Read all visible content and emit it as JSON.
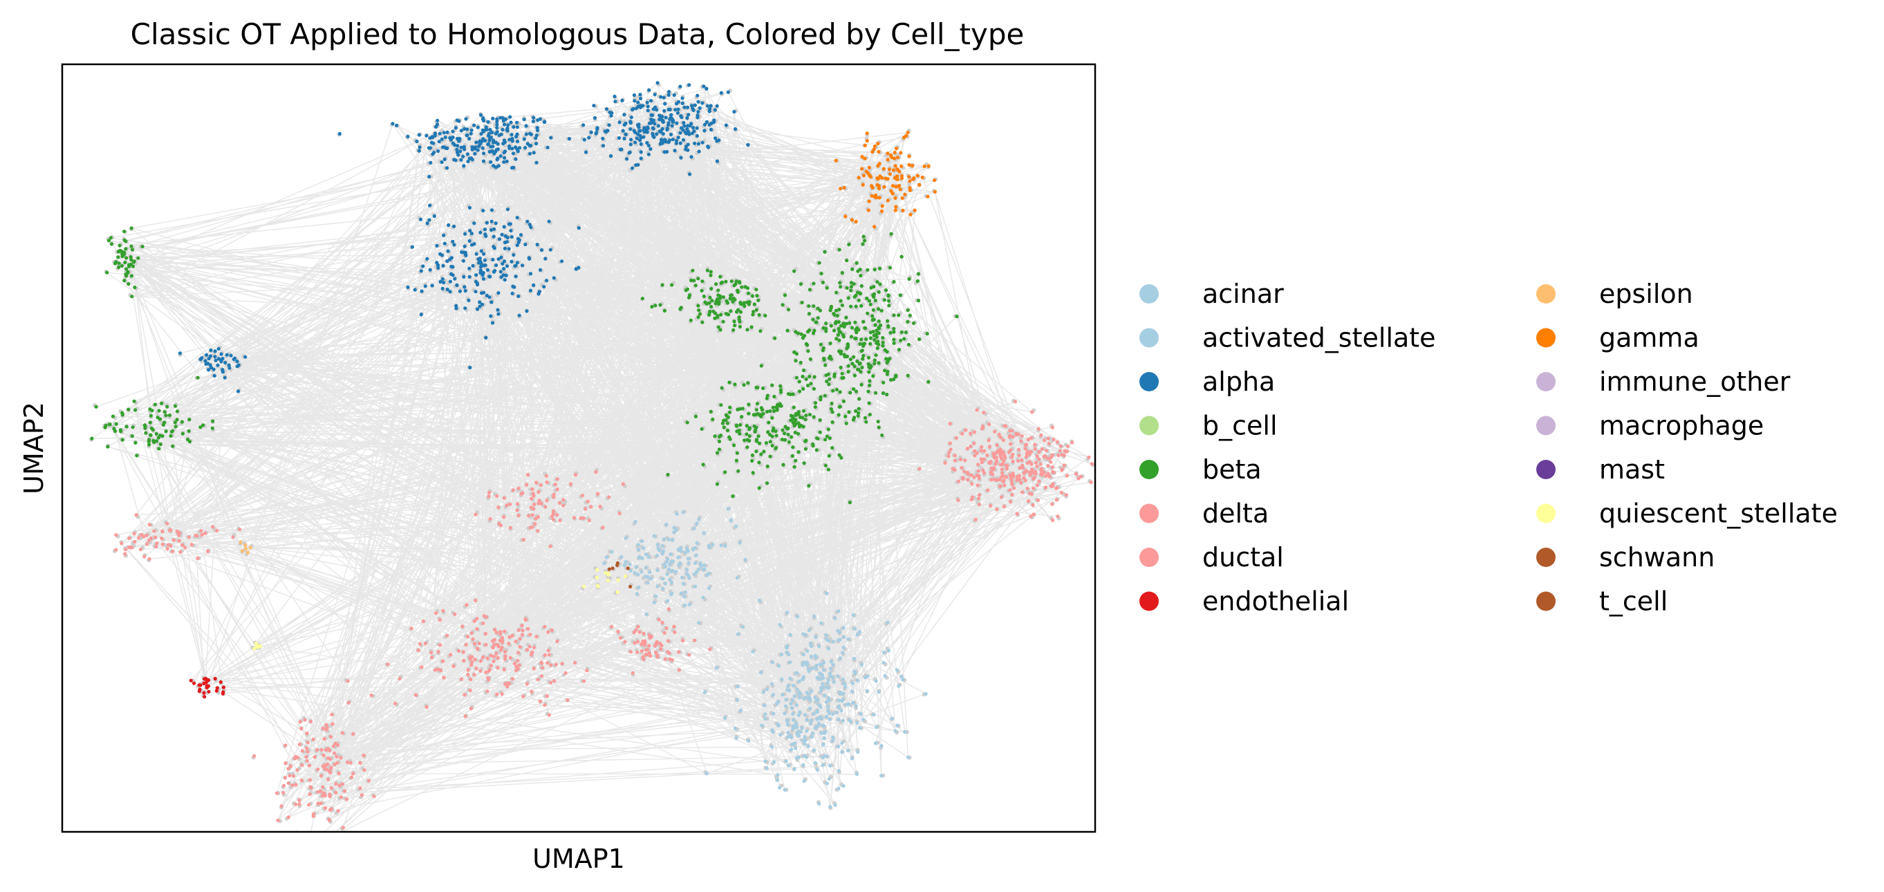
{
  "chart_data": {
    "type": "scatter",
    "title": "Classic OT Applied to Homologous Data, Colored by Cell_type",
    "xlabel": "UMAP1",
    "ylabel": "UMAP2",
    "xlim": [
      0,
      100
    ],
    "ylim": [
      0,
      100
    ],
    "ticks": "none",
    "grid": false,
    "legend_position": "right",
    "connection_color": "#d3d3d3",
    "legend": [
      {
        "label": "acinar",
        "color": "#a6cee3"
      },
      {
        "label": "activated_stellate",
        "color": "#a6cee3"
      },
      {
        "label": "alpha",
        "color": "#1f78b4"
      },
      {
        "label": "b_cell",
        "color": "#b2df8a"
      },
      {
        "label": "beta",
        "color": "#33a02c"
      },
      {
        "label": "delta",
        "color": "#fb9a99"
      },
      {
        "label": "ductal",
        "color": "#fb9a99"
      },
      {
        "label": "endothelial",
        "color": "#e31a1c"
      },
      {
        "label": "epsilon",
        "color": "#fdbf6f"
      },
      {
        "label": "gamma",
        "color": "#ff7f00"
      },
      {
        "label": "immune_other",
        "color": "#cab2d6"
      },
      {
        "label": "macrophage",
        "color": "#cab2d6"
      },
      {
        "label": "mast",
        "color": "#6a3d9a"
      },
      {
        "label": "quiescent_stellate",
        "color": "#ffff99"
      },
      {
        "label": "schwann",
        "color": "#b15928"
      },
      {
        "label": "t_cell",
        "color": "#b15928"
      }
    ],
    "clusters": [
      {
        "cell_type": "alpha",
        "x": 41,
        "y": 90,
        "sx": 3.5,
        "sy": 2.0,
        "n": 220
      },
      {
        "cell_type": "alpha",
        "x": 58,
        "y": 92,
        "sx": 3.0,
        "sy": 2.2,
        "n": 260
      },
      {
        "cell_type": "alpha",
        "x": 41,
        "y": 74,
        "sx": 3.0,
        "sy": 3.5,
        "n": 200
      },
      {
        "cell_type": "alpha",
        "x": 15,
        "y": 61,
        "sx": 1.5,
        "sy": 1.2,
        "n": 40
      },
      {
        "cell_type": "gamma",
        "x": 80,
        "y": 85,
        "sx": 2.0,
        "sy": 2.5,
        "n": 110
      },
      {
        "cell_type": "beta",
        "x": 6,
        "y": 75,
        "sx": 0.8,
        "sy": 2.0,
        "n": 50
      },
      {
        "cell_type": "beta",
        "x": 9,
        "y": 53,
        "sx": 2.5,
        "sy": 1.8,
        "n": 80
      },
      {
        "cell_type": "beta",
        "x": 64,
        "y": 69,
        "sx": 2.5,
        "sy": 2.0,
        "n": 120
      },
      {
        "cell_type": "beta",
        "x": 77,
        "y": 65,
        "sx": 3.0,
        "sy": 5.0,
        "n": 320
      },
      {
        "cell_type": "beta",
        "x": 69,
        "y": 53,
        "sx": 3.5,
        "sy": 3.5,
        "n": 220
      },
      {
        "cell_type": "delta",
        "x": 92,
        "y": 48,
        "sx": 3.0,
        "sy": 2.8,
        "n": 280
      },
      {
        "cell_type": "delta",
        "x": 10,
        "y": 38,
        "sx": 2.5,
        "sy": 1.2,
        "n": 60
      },
      {
        "cell_type": "delta",
        "x": 47,
        "y": 43,
        "sx": 3.0,
        "sy": 2.0,
        "n": 80
      },
      {
        "cell_type": "ductal",
        "x": 42,
        "y": 23,
        "sx": 4.5,
        "sy": 3.0,
        "n": 170
      },
      {
        "cell_type": "ductal",
        "x": 25,
        "y": 8,
        "sx": 2.0,
        "sy": 4.0,
        "n": 130
      },
      {
        "cell_type": "ductal",
        "x": 57,
        "y": 24,
        "sx": 2.5,
        "sy": 1.8,
        "n": 60
      },
      {
        "cell_type": "acinar",
        "x": 73,
        "y": 17,
        "sx": 3.5,
        "sy": 5.5,
        "n": 320
      },
      {
        "cell_type": "activated_stellate",
        "x": 59,
        "y": 35,
        "sx": 3.0,
        "sy": 2.5,
        "n": 130
      },
      {
        "cell_type": "endothelial",
        "x": 14,
        "y": 19,
        "sx": 1.0,
        "sy": 0.5,
        "n": 25
      },
      {
        "cell_type": "quiescent_stellate",
        "x": 53,
        "y": 33,
        "sx": 1.0,
        "sy": 1.0,
        "n": 12
      },
      {
        "cell_type": "quiescent_stellate",
        "x": 19,
        "y": 24,
        "sx": 0.5,
        "sy": 0.5,
        "n": 6
      },
      {
        "cell_type": "schwann",
        "x": 54,
        "y": 34,
        "sx": 0.6,
        "sy": 0.6,
        "n": 6
      },
      {
        "cell_type": "epsilon",
        "x": 17,
        "y": 37,
        "sx": 0.8,
        "sy": 0.8,
        "n": 6
      }
    ]
  }
}
